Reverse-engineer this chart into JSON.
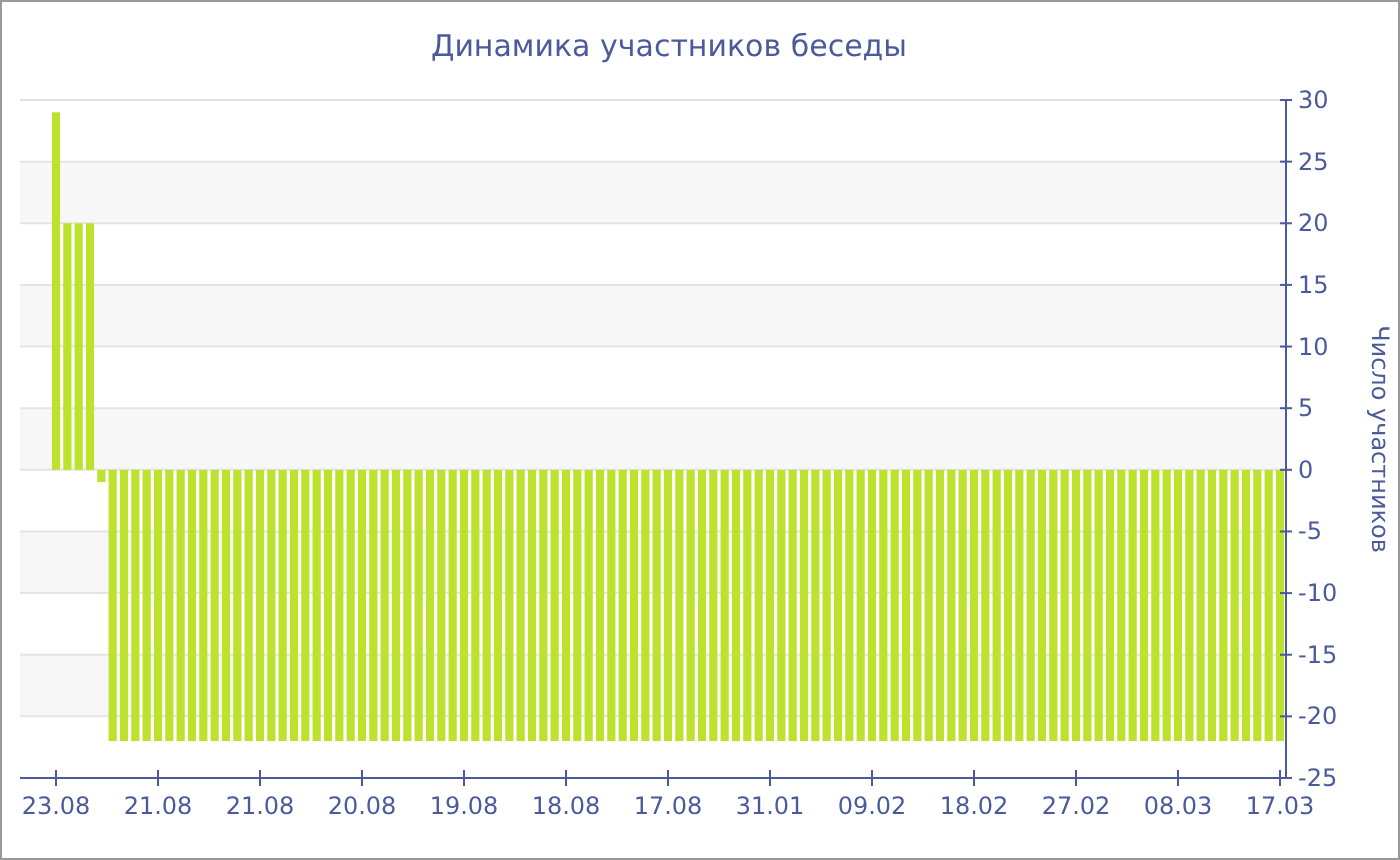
{
  "chart_data": {
    "type": "bar",
    "title": "Динамика участников беседы",
    "ylabel": "Число участников",
    "categories": [
      "23.08",
      null,
      null,
      null,
      null,
      null,
      null,
      null,
      null,
      "21.08",
      null,
      null,
      null,
      null,
      null,
      null,
      null,
      null,
      "21.08",
      null,
      null,
      null,
      null,
      null,
      null,
      null,
      null,
      "20.08",
      null,
      null,
      null,
      null,
      null,
      null,
      null,
      null,
      "19.08",
      null,
      null,
      null,
      null,
      null,
      null,
      null,
      null,
      "18.08",
      null,
      null,
      null,
      null,
      null,
      null,
      null,
      null,
      "17.08",
      null,
      null,
      null,
      null,
      null,
      null,
      null,
      null,
      "31.01",
      null,
      null,
      null,
      null,
      null,
      null,
      null,
      null,
      "09.02",
      null,
      null,
      null,
      null,
      null,
      null,
      null,
      null,
      "18.02",
      null,
      null,
      null,
      null,
      null,
      null,
      null,
      null,
      "27.02",
      null,
      null,
      null,
      null,
      null,
      null,
      null,
      null,
      "08.03",
      null,
      null,
      null,
      null,
      null,
      null,
      null,
      null,
      "17.03"
    ],
    "values": [
      29,
      20,
      20,
      20,
      -1,
      -22,
      -22,
      -22,
      -22,
      -22,
      -22,
      -22,
      -22,
      -22,
      -22,
      -22,
      -22,
      -22,
      -22,
      -22,
      -22,
      -22,
      -22,
      -22,
      -22,
      -22,
      -22,
      -22,
      -22,
      -22,
      -22,
      -22,
      -22,
      -22,
      -22,
      -22,
      -22,
      -22,
      -22,
      -22,
      -22,
      -22,
      -22,
      -22,
      -22,
      -22,
      -22,
      -22,
      -22,
      -22,
      -22,
      -22,
      -22,
      -22,
      -22,
      -22,
      -22,
      -22,
      -22,
      -22,
      -22,
      -22,
      -22,
      -22,
      -22,
      -22,
      -22,
      -22,
      -22,
      -22,
      -22,
      -22,
      -22,
      -22,
      -22,
      -22,
      -22,
      -22,
      -22,
      -22,
      -22,
      -22,
      -22,
      -22,
      -22,
      -22,
      -22,
      -22,
      -22,
      -22,
      -22,
      -22,
      -22,
      -22,
      -22,
      -22,
      -22,
      -22,
      -22,
      -22,
      -22,
      -22,
      -22,
      -22,
      -22,
      -22,
      -22,
      -22,
      -22
    ],
    "color": "#bde22e",
    "ylim": [
      -25,
      30
    ],
    "yticks": [
      -25,
      -20,
      -15,
      -10,
      -5,
      0,
      5,
      10,
      15,
      20,
      25,
      30
    ],
    "grid": "y"
  }
}
